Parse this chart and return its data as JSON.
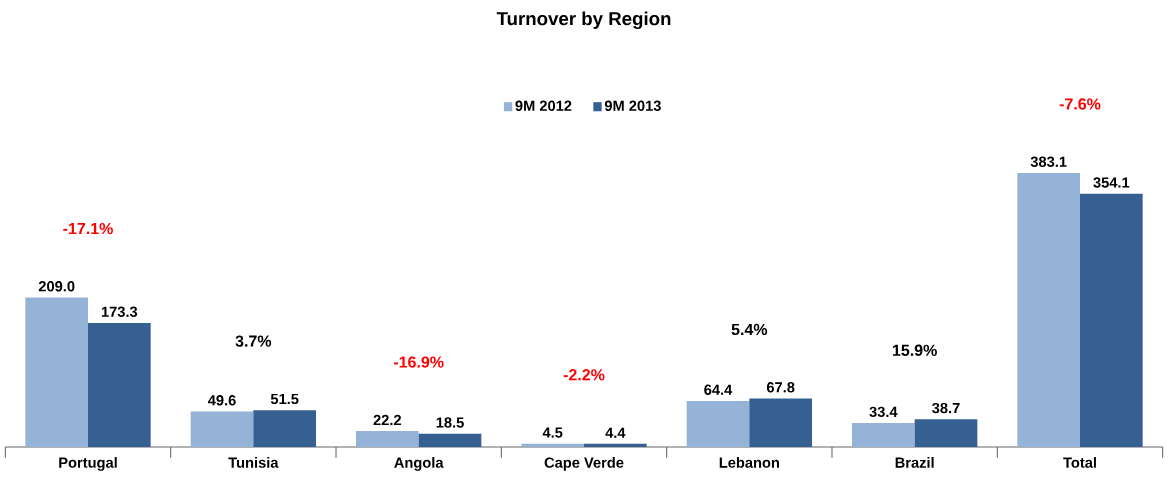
{
  "chart_data": {
    "type": "bar",
    "title": "Turnover by Region",
    "categories": [
      "Portugal",
      "Tunisia",
      "Angola",
      "Cape Verde",
      "Lebanon",
      "Brazil",
      "Total"
    ],
    "series": [
      {
        "name": "9M 2012",
        "color": "#95b3d7",
        "values": [
          209.0,
          49.6,
          22.2,
          4.5,
          64.4,
          33.4,
          383.1
        ],
        "value_labels": [
          "209.0",
          "49.6",
          "22.2",
          "4.5",
          "64.4",
          "33.4",
          "383.1"
        ]
      },
      {
        "name": "9M 2013",
        "color": "#366092",
        "values": [
          173.3,
          51.5,
          18.5,
          4.4,
          67.8,
          38.7,
          354.1
        ],
        "value_labels": [
          "173.3",
          "51.5",
          "18.5",
          "4.4",
          "67.8",
          "38.7",
          "354.1"
        ]
      }
    ],
    "legend": "top",
    "annotations": [
      "-17.1%",
      "3.7%",
      "-16.9%",
      "-2.2%",
      "5.4%",
      "15.9%",
      "-7.6%"
    ]
  }
}
